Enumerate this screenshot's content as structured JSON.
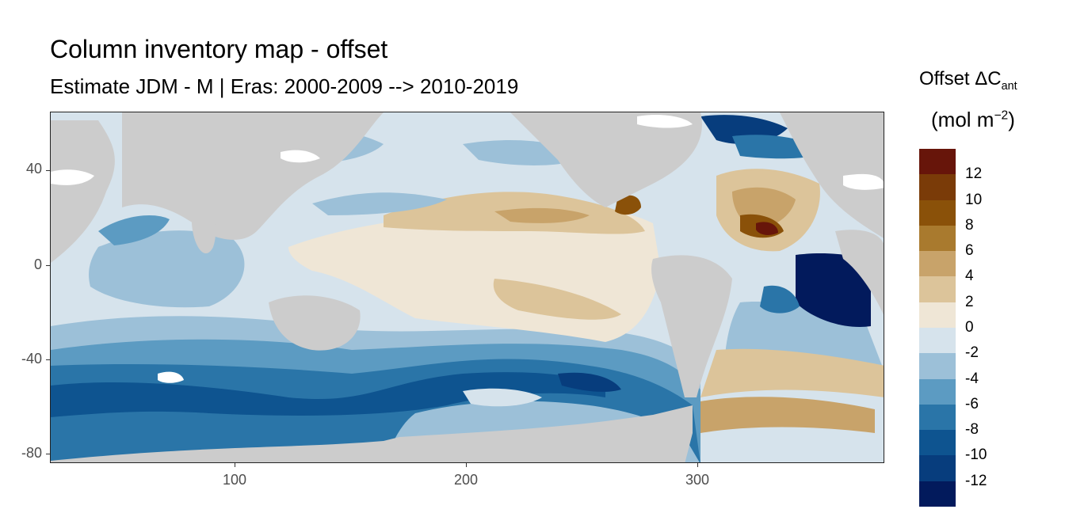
{
  "title": "Column inventory map - offset",
  "subtitle": "Estimate JDM - M | Eras: 2000-2009 --> 2010-2019",
  "legend": {
    "title_main": "Offset ΔC",
    "title_sub": "ant",
    "unit_main": "(mol m",
    "unit_sup": "−2",
    "unit_close": ")",
    "breaks": [
      "12",
      "10",
      "8",
      "6",
      "4",
      "2",
      "0",
      "-2",
      "-4",
      "-6",
      "-8",
      "-10",
      "-12"
    ],
    "colors": [
      "#67150a",
      "#7a3b08",
      "#8a5109",
      "#a97a2e",
      "#c8a36a",
      "#dcc49a",
      "#efe6d6",
      "#d6e3ec",
      "#9cc0d8",
      "#5c9bc2",
      "#2a75a8",
      "#0e5490",
      "#073d7d",
      "#021a5c"
    ]
  },
  "axes": {
    "x_ticks": [
      "100",
      "200",
      "300"
    ],
    "y_ticks": [
      "40",
      "0",
      "-40",
      "-80"
    ],
    "x_range": [
      20,
      380
    ],
    "y_range": [
      -85,
      65
    ]
  },
  "colors": {
    "land": "#cccccc",
    "missing": "#ffffff"
  }
}
